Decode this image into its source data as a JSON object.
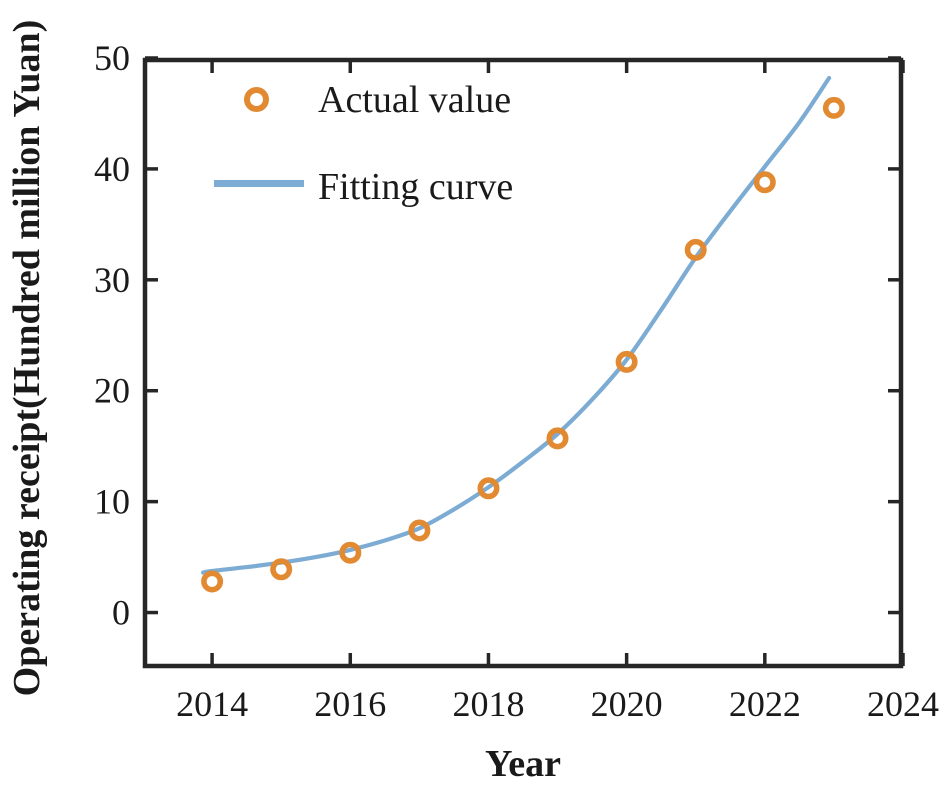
{
  "figure": {
    "background": "#ffffff",
    "frame_color": "#262626",
    "text_color": "#1a1a1a"
  },
  "chart_data": {
    "type": "scatter",
    "title": "",
    "xlabel": "Year",
    "ylabel": "Operating receipt(Hundred million Yuan)",
    "xlim": [
      2013,
      2024
    ],
    "ylim": [
      -5,
      50
    ],
    "xticks": [
      2014,
      2016,
      2018,
      2020,
      2022,
      2024
    ],
    "yticks": [
      0,
      10,
      20,
      30,
      40,
      50
    ],
    "grid": false,
    "legend_position": "upper-left-inside",
    "series": [
      {
        "name": "Actual value",
        "type": "scatter",
        "marker": "open-circle",
        "color": "#E28A32",
        "x": [
          2014,
          2015,
          2016,
          2017,
          2018,
          2019,
          2020,
          2021,
          2022,
          2023
        ],
        "y": [
          2.8,
          3.9,
          5.4,
          7.4,
          11.2,
          15.7,
          22.6,
          32.7,
          38.8,
          45.5
        ]
      },
      {
        "name": "Fitting curve",
        "type": "line",
        "color": "#7CABD3",
        "x": [
          2013.87,
          2014,
          2014.5,
          2015,
          2015.5,
          2016,
          2016.5,
          2017,
          2017.5,
          2018,
          2018.5,
          2019,
          2019.5,
          2020,
          2020.5,
          2021,
          2021.5,
          2022,
          2022.5,
          2022.93
        ],
        "y": [
          3.6,
          3.75,
          4.1,
          4.5,
          5.0,
          5.65,
          6.5,
          7.6,
          9.3,
          11.3,
          13.6,
          16.1,
          19.2,
          22.8,
          27.3,
          32.0,
          36.2,
          40.2,
          44.2,
          48.2
        ]
      }
    ]
  }
}
